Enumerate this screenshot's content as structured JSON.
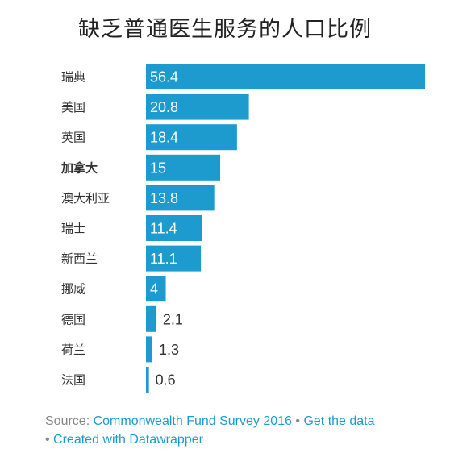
{
  "chart_data": {
    "type": "bar",
    "orientation": "horizontal",
    "title": "缺乏普通医生服务的人口比例",
    "categories": [
      "瑞典",
      "美国",
      "英国",
      "加拿大",
      "澳大利亚",
      "瑞士",
      "新西兰",
      "挪威",
      "德国",
      "荷兰",
      "法国"
    ],
    "values": [
      56.4,
      20.8,
      18.4,
      15,
      13.8,
      11.4,
      11.1,
      4,
      2.1,
      1.3,
      0.6
    ],
    "value_labels": [
      "56.4",
      "20.8",
      "18.4",
      "15",
      "13.8",
      "11.4",
      "11.1",
      "4",
      "2.1",
      "1.3",
      "0.6"
    ],
    "highlighted_category": "加拿大",
    "bar_color": "#1d9bcf",
    "xlim": [
      0,
      56.4
    ],
    "grid": false,
    "legend": "none"
  },
  "footer": {
    "source_label": "Source: ",
    "source_link": "Commonwealth Fund Survey 2016",
    "separator": " • ",
    "get_data": "Get the data",
    "created_with": "Created with Datawrapper"
  }
}
